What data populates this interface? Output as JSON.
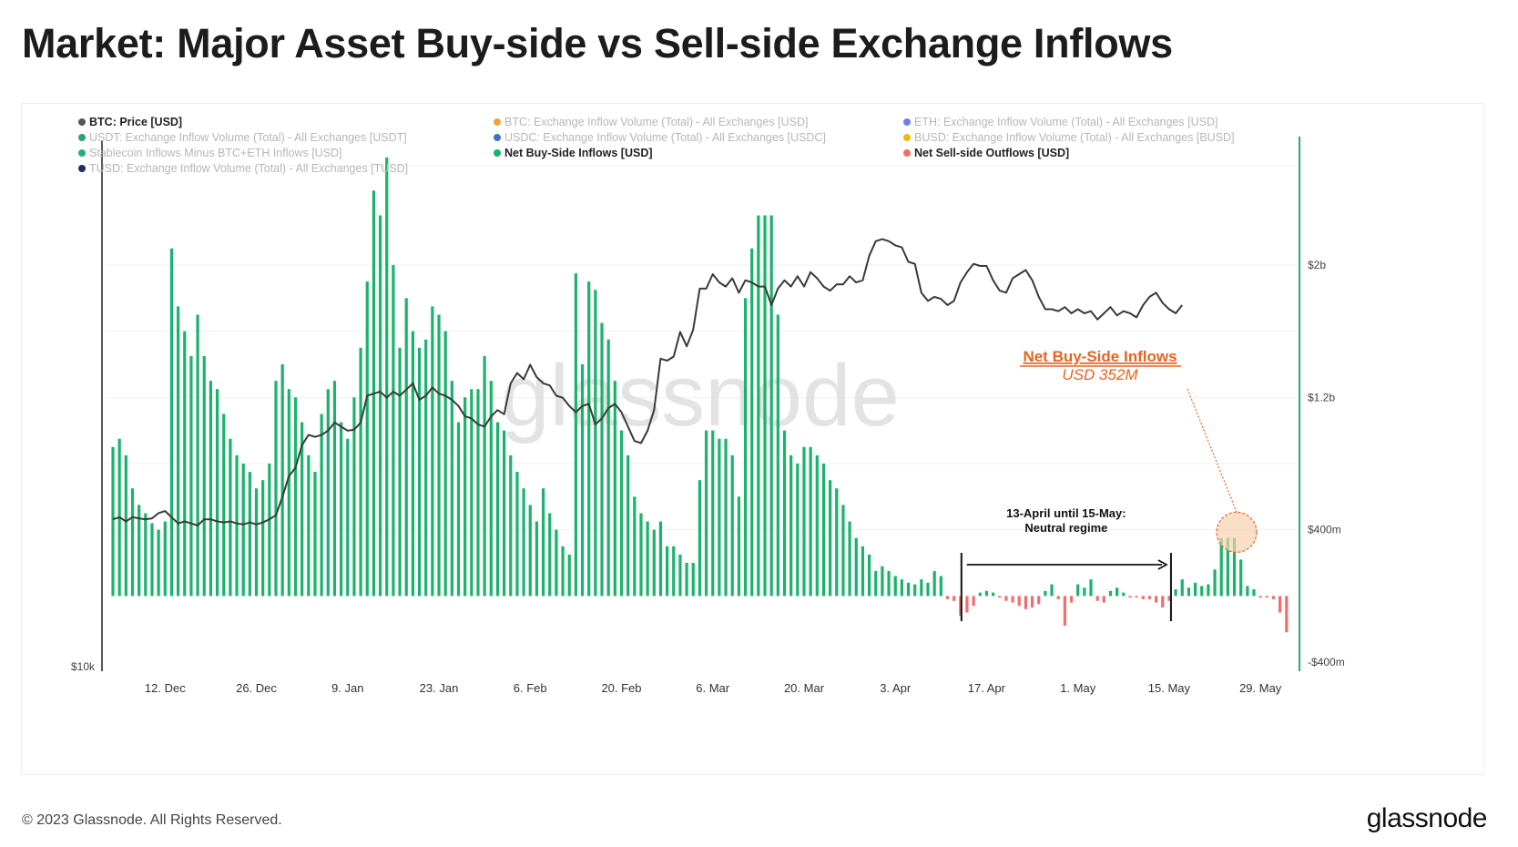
{
  "page": {
    "title": "Market: Major Asset Buy-side vs Sell-side Exchange Inflows",
    "copyright": "© 2023 Glassnode. All Rights Reserved.",
    "logo": "glassnode",
    "watermark": "glassnode"
  },
  "colors": {
    "price_line": "#3a3a3a",
    "buy_side": "#19b36b",
    "sell_side": "#ef6f6f",
    "annotation": "#e8641e",
    "axis_right": "#19b36b"
  },
  "chart_data": {
    "type": "bar",
    "legend_placement": "top-left",
    "legend": [
      {
        "name": "BTC: Price [USD]",
        "color": "#555555",
        "active": true
      },
      {
        "name": "BTC: Exchange Inflow Volume (Total) - All Exchanges [USD]",
        "color": "#f2a33a",
        "active": false
      },
      {
        "name": "ETH: Exchange Inflow Volume (Total) - All Exchanges [USD]",
        "color": "#6b7ff0",
        "active": false
      },
      {
        "name": "USDT: Exchange Inflow Volume (Total) - All Exchanges [USDT]",
        "color": "#26a17b",
        "active": false
      },
      {
        "name": "USDC: Exchange Inflow Volume (Total) - All Exchanges [USDC]",
        "color": "#3e73c4",
        "active": false
      },
      {
        "name": "BUSD: Exchange Inflow Volume (Total) - All Exchanges [BUSD]",
        "color": "#f0b90b",
        "active": false
      },
      {
        "name": "Stablecoin Inflows Minus BTC+ETH Inflows [USD]",
        "color": "#22b07d",
        "active": false
      },
      {
        "name": "Net Buy-Side Inflows [USD]",
        "color": "#19b36b",
        "active": true
      },
      {
        "name": "Net Sell-side Outflows [USD]",
        "color": "#ef6f6f",
        "active": true
      },
      {
        "name": "TUSD: Exchange Inflow Volume (Total) - All Exchanges [TUSD]",
        "color": "#1f2a6b",
        "active": false
      }
    ],
    "x_tick_labels": [
      "12. Dec",
      "26. Dec",
      "9. Jan",
      "23. Jan",
      "6. Feb",
      "20. Feb",
      "6. Mar",
      "20. Mar",
      "3. Apr",
      "17. Apr",
      "1. May",
      "15. May",
      "29. May"
    ],
    "x_start": "2022-12-04",
    "left_axis": {
      "tick_labels": [
        "$10k"
      ]
    },
    "right_axis": {
      "tick_labels": [
        "$2b",
        "$1.2b",
        "$400m",
        "-$400m"
      ],
      "ticks": [
        2000,
        1200,
        400,
        -400
      ],
      "range": [
        -400,
        2900
      ],
      "unit": "USD millions"
    },
    "price_range": [
      10000,
      31000
    ],
    "net_flow_millions": [
      900,
      950,
      850,
      650,
      550,
      500,
      440,
      400,
      450,
      2100,
      1750,
      1600,
      1450,
      1700,
      1450,
      1300,
      1250,
      1100,
      950,
      850,
      800,
      750,
      650,
      700,
      800,
      1300,
      1400,
      1250,
      1200,
      1050,
      850,
      750,
      1100,
      1250,
      1300,
      1050,
      950,
      1200,
      1500,
      1900,
      2450,
      2300,
      2650,
      2000,
      1500,
      1800,
      1600,
      1500,
      1550,
      1750,
      1700,
      1600,
      1300,
      1050,
      1200,
      1250,
      1250,
      1450,
      1300,
      1050,
      1000,
      850,
      750,
      650,
      550,
      450,
      650,
      500,
      400,
      300,
      250,
      1950,
      1400,
      1900,
      1850,
      1650,
      1550,
      1300,
      1000,
      850,
      600,
      500,
      450,
      400,
      450,
      300,
      300,
      250,
      200,
      200,
      700,
      1000,
      1000,
      950,
      950,
      850,
      600,
      1800,
      2100,
      2300,
      2300,
      2300,
      1700,
      1000,
      850,
      800,
      900,
      900,
      850,
      800,
      700,
      650,
      550,
      450,
      350,
      300,
      250,
      150,
      180,
      150,
      120,
      100,
      80,
      70,
      100,
      80,
      150,
      120,
      -20,
      -30,
      -120,
      -100,
      -60,
      20,
      30,
      20,
      -10,
      -30,
      -40,
      -60,
      -80,
      -70,
      -50,
      30,
      70,
      -20,
      -180,
      -40,
      70,
      50,
      100,
      -30,
      -40,
      30,
      50,
      20,
      -10,
      -10,
      -20,
      -20,
      -40,
      -70,
      -30,
      40,
      100,
      50,
      80,
      60,
      70,
      160,
      350,
      350,
      350,
      220,
      60,
      40,
      -10,
      -10,
      -20,
      -100,
      -220
    ],
    "btc_price_usd": [
      16800,
      16900,
      16700,
      16900,
      16850,
      16800,
      16850,
      17100,
      17200,
      16900,
      16600,
      16700,
      16600,
      16500,
      16800,
      16800,
      16700,
      16650,
      16700,
      16600,
      16550,
      16650,
      16550,
      16650,
      16800,
      17000,
      17900,
      18900,
      19300,
      20400,
      20900,
      20800,
      20900,
      21100,
      21500,
      21300,
      21100,
      21150,
      21500,
      22800,
      22900,
      23000,
      22700,
      23000,
      22800,
      23100,
      23400,
      22600,
      22800,
      23200,
      22900,
      22800,
      22600,
      22300,
      21800,
      21700,
      21400,
      21300,
      21800,
      22100,
      21900,
      23400,
      23900,
      23600,
      24300,
      23700,
      23400,
      23300,
      22800,
      22700,
      22300,
      22000,
      22300,
      22400,
      21400,
      21700,
      22200,
      22400,
      22000,
      21300,
      20600,
      20500,
      21100,
      22100,
      24600,
      24500,
      24700,
      25900,
      25200,
      26000,
      28000,
      28000,
      28700,
      28300,
      28100,
      28500,
      27800,
      28400,
      28300,
      28100,
      28100,
      27200,
      28000,
      28400,
      28100,
      28600,
      28100,
      28800,
      28500,
      28100,
      27900,
      28200,
      28200,
      28600,
      28300,
      28400,
      29600,
      30300,
      30400,
      30300,
      30100,
      30000,
      29300,
      29200,
      27800,
      27400,
      27600,
      27500,
      27200,
      27400,
      28300,
      28800,
      29200,
      29100,
      29100,
      28400,
      27900,
      27800,
      28500,
      28700,
      28900,
      28400,
      27600,
      27000,
      27000,
      26900,
      27100,
      26800,
      27000,
      26800,
      26900,
      26500,
      26800,
      27100,
      26700,
      26900,
      26800,
      26600,
      27200,
      27600,
      27800,
      27300,
      27000,
      26800,
      27200
    ],
    "annotations": {
      "regime_label_line1": "13-April until 15-May:",
      "regime_label_line2": "Neutral regime",
      "highlight_title": "Net Buy-Side Inflows",
      "highlight_value": "USD 352M",
      "regime_start": "2023-04-13",
      "regime_end": "2023-05-15",
      "highlight_value_millions": 352
    }
  }
}
